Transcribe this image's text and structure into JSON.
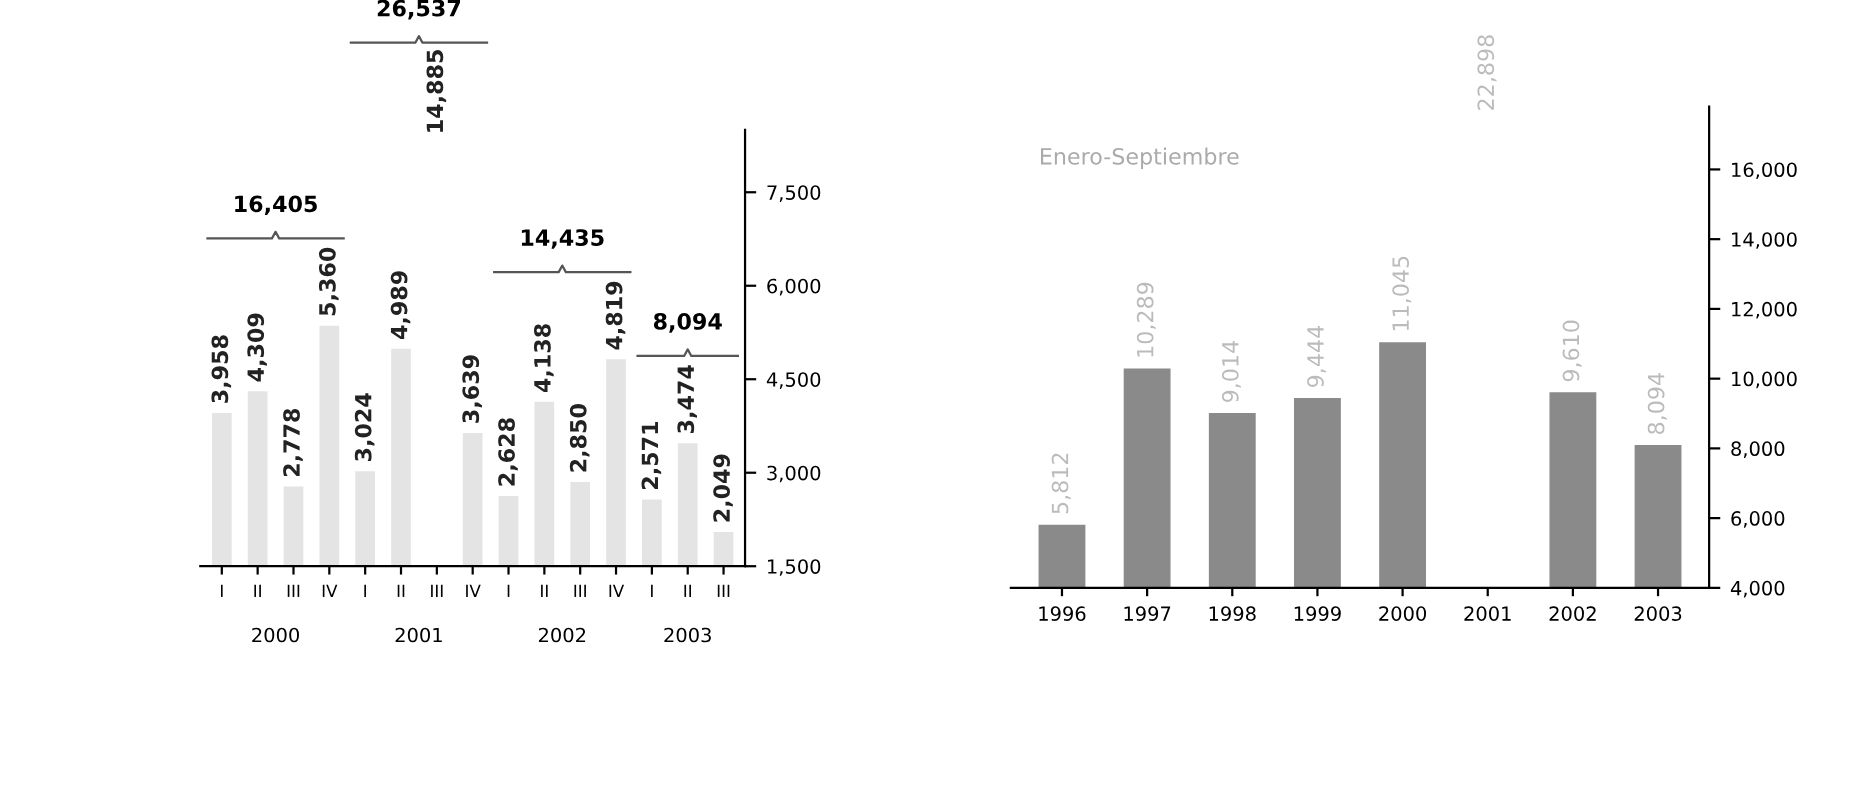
{
  "chart_data": [
    {
      "type": "bar",
      "categories": [
        "I",
        "II",
        "III",
        "IV",
        "I",
        "II",
        "III",
        "IV",
        "I",
        "II",
        "III",
        "IV",
        "I",
        "II",
        "III"
      ],
      "values": [
        3958,
        4309,
        2778,
        5360,
        3024,
        4989,
        null,
        3639,
        2628,
        4138,
        2850,
        4819,
        2571,
        3474,
        2049
      ],
      "value_labels": [
        "3,958",
        "4,309",
        "2,778",
        "5,360",
        "3,024",
        "4,989",
        "14,885",
        "3,639",
        "2,628",
        "4,138",
        "2,850",
        "4,819",
        "2,571",
        "3,474",
        "2,049"
      ],
      "color": "#e4e4e4",
      "ylim": [
        1500,
        8500
      ],
      "yticks": [
        {
          "value": 1500,
          "label": "1,500"
        },
        {
          "value": 3000,
          "label": "3,000"
        },
        {
          "value": 4500,
          "label": "4,500"
        },
        {
          "value": 6000,
          "label": "6,000"
        },
        {
          "value": 7500,
          "label": "7,500"
        }
      ],
      "annotations": [
        "2000",
        "2001",
        "2002",
        "2003",
        "16,405",
        "26,537",
        "14,435",
        "8,094"
      ]
    },
    {
      "type": "bar",
      "subtitle": "Enero-Septiembre",
      "categories": [
        "1996",
        "1997",
        "1998",
        "1999",
        "2000",
        "2001",
        "2002",
        "2003"
      ],
      "values": [
        5812,
        10289,
        9014,
        9444,
        11045,
        null,
        9610,
        8094
      ],
      "value_labels": [
        "5,812",
        "10,289",
        "9,014",
        "9,444",
        "11,045",
        "22,898",
        "9,610",
        "8,094"
      ],
      "color": "#8a8a8a",
      "ylim": [
        4000,
        17800
      ],
      "yticks": [
        {
          "value": 4000,
          "label": "4,000"
        },
        {
          "value": 6000,
          "label": "6,000"
        },
        {
          "value": 8000,
          "label": "8,000"
        },
        {
          "value": 10000,
          "label": "10,000"
        },
        {
          "value": 12000,
          "label": "12,000"
        },
        {
          "value": 14000,
          "label": "14,000"
        },
        {
          "value": 16000,
          "label": "16,000"
        }
      ]
    }
  ]
}
